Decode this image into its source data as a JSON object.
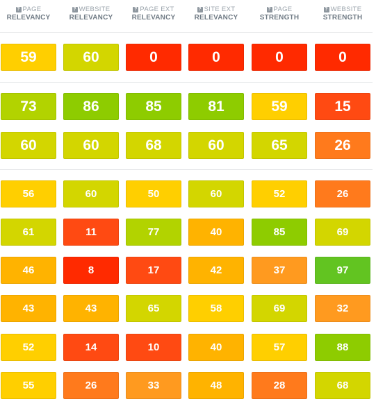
{
  "headers": [
    {
      "line1": "PAGE",
      "line2": "RELEVANCY"
    },
    {
      "line1": "WEBSITE",
      "line2": "RELEVANCY"
    },
    {
      "line1": "PAGE EXT",
      "line2": "RELEVANCY"
    },
    {
      "line1": "SITE EXT",
      "line2": "RELEVANCY"
    },
    {
      "line1": "PAGE",
      "line2": "STRENGTH"
    },
    {
      "line1": "WEBSITE",
      "line2": "STRENGTH"
    }
  ],
  "help_icon": "question-mark-icon",
  "colors": {
    "red": "#ff2a00",
    "red_orange": "#ff4a12",
    "orange": "#ff7a1c",
    "orange_light": "#ff9a1f",
    "amber": "#ffb300",
    "yellow": "#ffcf00",
    "yellow_green": "#d3d600",
    "lime": "#b2d300",
    "green": "#8ecc00",
    "green_dark": "#62c421"
  },
  "groups": [
    {
      "size": "big",
      "rows": [
        {
          "values": [
            "59",
            "60",
            "0",
            "0",
            "0",
            "0"
          ],
          "colors": [
            "yellow",
            "yellow_green",
            "red",
            "red",
            "red",
            "red"
          ]
        }
      ]
    },
    {
      "size": "big",
      "rows": [
        {
          "values": [
            "73",
            "86",
            "85",
            "81",
            "59",
            "15"
          ],
          "colors": [
            "lime",
            "green",
            "green",
            "green",
            "yellow",
            "red_orange"
          ]
        },
        {
          "values": [
            "60",
            "60",
            "68",
            "60",
            "65",
            "26"
          ],
          "colors": [
            "yellow_green",
            "yellow_green",
            "yellow_green",
            "yellow_green",
            "yellow_green",
            "orange"
          ]
        }
      ]
    },
    {
      "size": "small",
      "rows": [
        {
          "values": [
            "56",
            "60",
            "50",
            "60",
            "52",
            "26"
          ],
          "colors": [
            "yellow",
            "yellow_green",
            "yellow",
            "yellow_green",
            "yellow",
            "orange"
          ]
        },
        {
          "values": [
            "61",
            "11",
            "77",
            "40",
            "85",
            "69"
          ],
          "colors": [
            "yellow_green",
            "red_orange",
            "lime",
            "amber",
            "green",
            "yellow_green"
          ]
        },
        {
          "values": [
            "46",
            "8",
            "17",
            "42",
            "37",
            "97"
          ],
          "colors": [
            "amber",
            "red",
            "red_orange",
            "amber",
            "orange_light",
            "green_dark"
          ]
        },
        {
          "values": [
            "43",
            "43",
            "65",
            "58",
            "69",
            "32"
          ],
          "colors": [
            "amber",
            "amber",
            "yellow_green",
            "yellow",
            "yellow_green",
            "orange_light"
          ]
        },
        {
          "values": [
            "52",
            "14",
            "10",
            "40",
            "57",
            "88"
          ],
          "colors": [
            "yellow",
            "red_orange",
            "red_orange",
            "amber",
            "yellow",
            "green"
          ]
        },
        {
          "values": [
            "55",
            "26",
            "33",
            "48",
            "28",
            "68"
          ],
          "colors": [
            "yellow",
            "orange",
            "orange_light",
            "amber",
            "orange",
            "yellow_green"
          ]
        }
      ]
    }
  ]
}
